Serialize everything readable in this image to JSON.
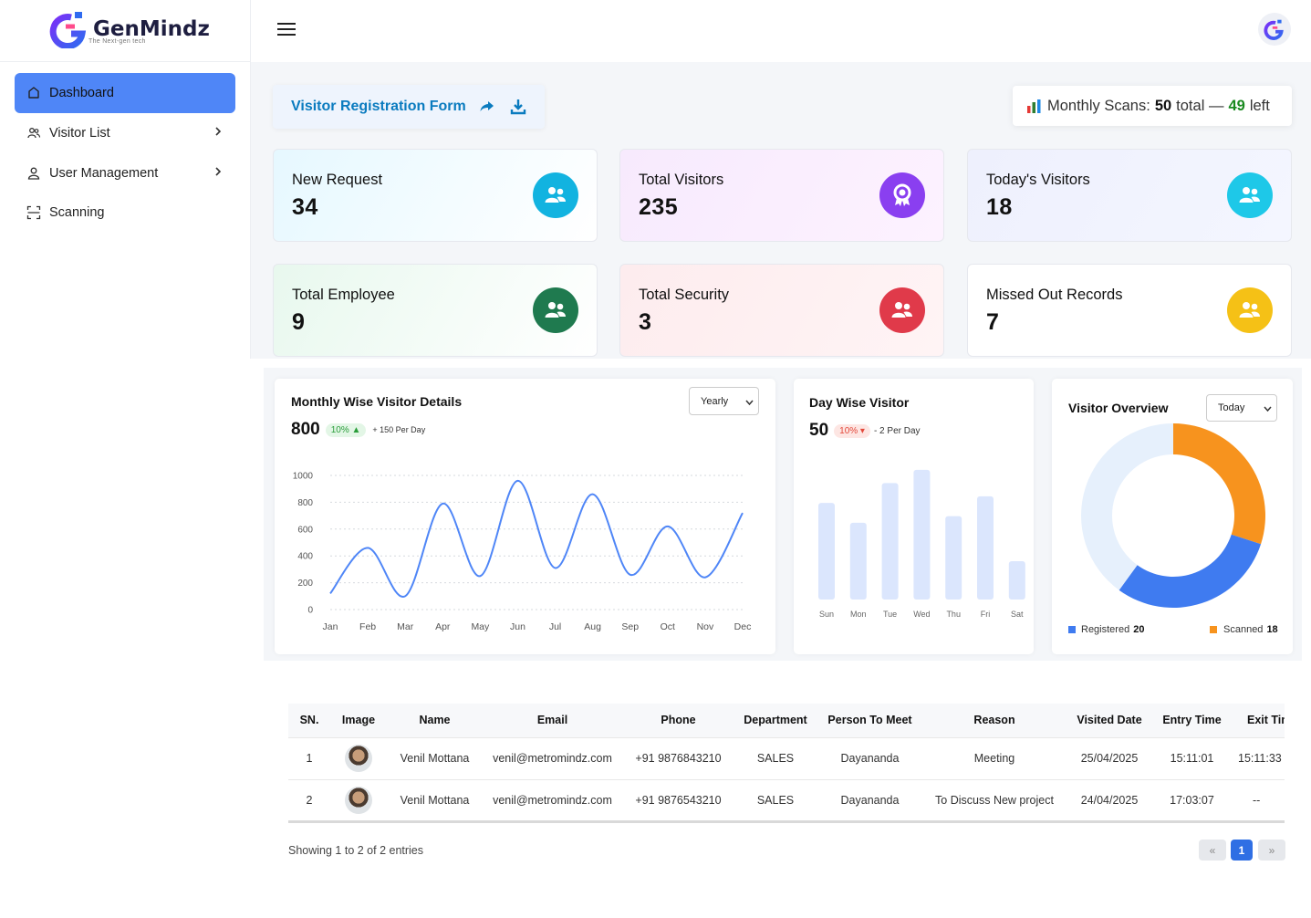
{
  "brand": {
    "name": "GenMindz",
    "tagline": "The Next-gen tech"
  },
  "sidebar": {
    "items": [
      {
        "label": "Dashboard",
        "icon": "dashboard-icon"
      },
      {
        "label": "Visitor List",
        "icon": "users-icon"
      },
      {
        "label": "User Management",
        "icon": "user-icon"
      },
      {
        "label": "Scanning",
        "icon": "scan-icon"
      }
    ]
  },
  "header": {
    "menu_icon": "hamburger-icon",
    "avatar_icon": "brand-logo-icon"
  },
  "registration": {
    "label": "Visitor Registration Form"
  },
  "scans": {
    "prefix": "Monthly Scans:",
    "total": "50",
    "total_suffix": "total —",
    "left": "49",
    "left_suffix": "left"
  },
  "stats": [
    {
      "title": "New Request",
      "value": "34",
      "color": "#12b3e0",
      "bg": "linear-gradient(120deg,#e6f8ff,#ffffff)"
    },
    {
      "title": "Total Visitors",
      "value": "235",
      "color": "#8a3ff0",
      "bg": "linear-gradient(120deg,#f7eafd,#fdf2ff)"
    },
    {
      "title": "Today's Visitors",
      "value": "18",
      "color": "#1ec8e8",
      "bg": "linear-gradient(120deg,#eef0fd,#f4f6ff)"
    },
    {
      "title": "Total Employee",
      "value": "9",
      "color": "#1f7a4f",
      "bg": "linear-gradient(120deg,#e8f8ee,#ffffff)"
    },
    {
      "title": "Total Security",
      "value": "3",
      "color": "#e03a4a",
      "bg": "linear-gradient(120deg,#fdecee,#fff4f5)"
    },
    {
      "title": "Missed Out Records",
      "value": "7",
      "color": "#f5c116",
      "bg": "#ffffff"
    }
  ],
  "monthly": {
    "title": "Monthly Wise Visitor Details",
    "total": "800",
    "pct": "10% ▲",
    "note": "+ 150 Per Day",
    "filter": "Yearly"
  },
  "daywise": {
    "title": "Day Wise Visitor",
    "total": "50",
    "pct": "10% ▾",
    "note": "- 2 Per Day"
  },
  "overview": {
    "title": "Visitor Overview",
    "filter": "Today",
    "registered_label": "Registered",
    "registered_value": "20",
    "scanned_label": "Scanned",
    "scanned_value": "18"
  },
  "chart_data": [
    {
      "type": "line",
      "title": "Monthly Wise Visitor Details",
      "categories": [
        "Jan",
        "Feb",
        "Mar",
        "Apr",
        "May",
        "Jun",
        "Jul",
        "Aug",
        "Sep",
        "Oct",
        "Nov",
        "Dec"
      ],
      "values": [
        120,
        460,
        100,
        790,
        250,
        960,
        310,
        860,
        260,
        620,
        240,
        720
      ],
      "y_ticks": [
        "1000",
        "800",
        "600",
        "400",
        "200",
        "0"
      ],
      "ylim": [
        0,
        1000
      ],
      "color": "#4f86f7"
    },
    {
      "type": "bar",
      "title": "Day Wise Visitor",
      "categories": [
        "Sun",
        "Mon",
        "Tue",
        "Wed",
        "Thu",
        "Fri",
        "Sat"
      ],
      "values": [
        73,
        58,
        88,
        98,
        63,
        78,
        29
      ],
      "ylim": [
        0,
        100
      ],
      "color": "#dbe6fd"
    },
    {
      "type": "pie",
      "title": "Visitor Overview",
      "labels": [
        "Scanned",
        "Registered",
        "Other"
      ],
      "values": [
        30,
        30,
        40
      ],
      "colors": [
        "#f7931e",
        "#3f7bf0",
        "#e6f0fc"
      ]
    }
  ],
  "table": {
    "headers": [
      "SN.",
      "Image",
      "Name",
      "Email",
      "Phone",
      "Department",
      "Person To Meet",
      "Reason",
      "Visited Date",
      "Entry Time",
      "Exit Tim"
    ],
    "rows": [
      [
        "1",
        "",
        "Venil Mottana",
        "venil@metromindz.com",
        "+91 9876843210",
        "SALES",
        "Dayananda",
        "Meeting",
        "25/04/2025",
        "15:11:01",
        "15:11:33"
      ],
      [
        "2",
        "",
        "Venil Mottana",
        "venil@metromindz.com",
        "+91 9876543210",
        "SALES",
        "Dayananda",
        "To Discuss New project",
        "24/04/2025",
        "17:03:07",
        "--"
      ]
    ]
  },
  "pagination": {
    "showing": "Showing 1 to 2 of 2 entries",
    "prev": "«",
    "page": "1",
    "next": "»"
  }
}
